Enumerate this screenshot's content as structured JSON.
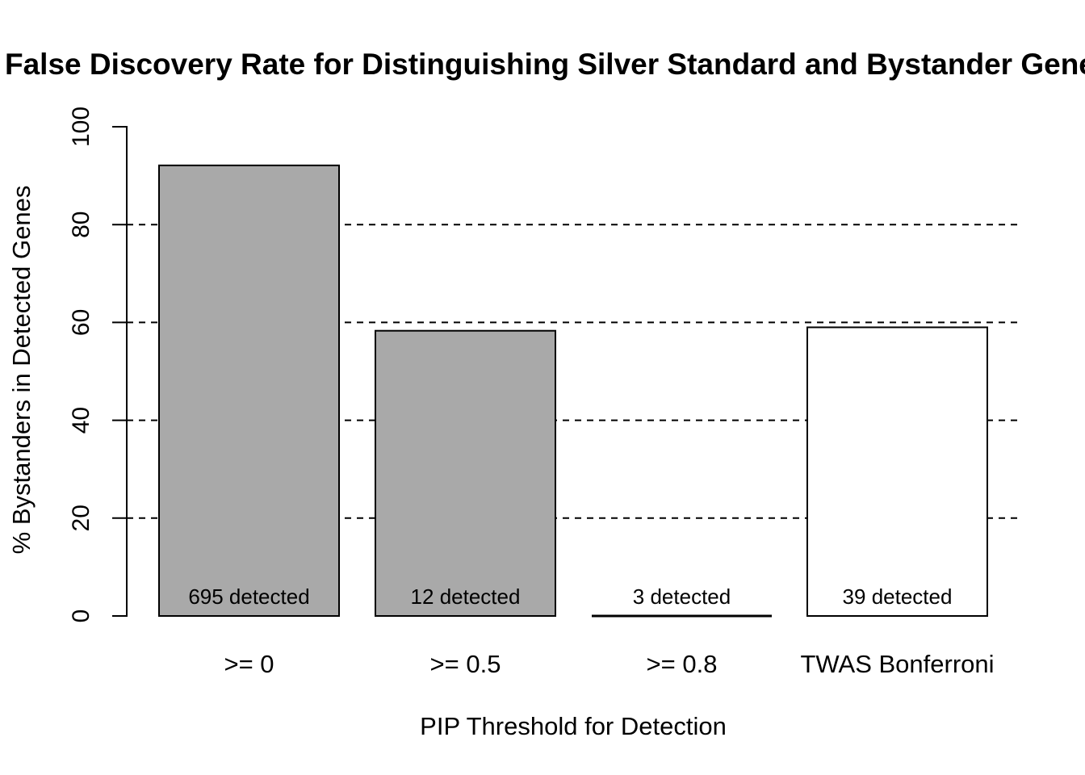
{
  "chart_data": {
    "type": "bar",
    "title": "False Discovery Rate for Distinguishing Silver Standard and Bystander Genes",
    "xlabel": "PIP Threshold for Detection",
    "ylabel": "% Bystanders in Detected Genes",
    "categories": [
      ">= 0",
      ">= 0.5",
      ">= 0.8",
      "TWAS Bonferroni"
    ],
    "values": [
      92.1,
      58.3,
      0,
      59.0
    ],
    "bar_labels": [
      "695 detected",
      "12 detected",
      "3 detected",
      "39 detected"
    ],
    "detected_counts": [
      695,
      12,
      3,
      39
    ],
    "bar_fills": [
      "#A9A9A9",
      "#A9A9A9",
      "#A9A9A9",
      "#FFFFFF"
    ],
    "bar_border_color": "#000000",
    "ylim": [
      0,
      100
    ],
    "yticks": [
      0,
      20,
      40,
      60,
      80,
      100
    ],
    "gridlines": [
      20,
      40,
      60,
      80
    ],
    "grid_style": "dashed",
    "grid_on": true,
    "legend": "none",
    "background_color": "#FFFFFF",
    "text_color": "#000000"
  }
}
